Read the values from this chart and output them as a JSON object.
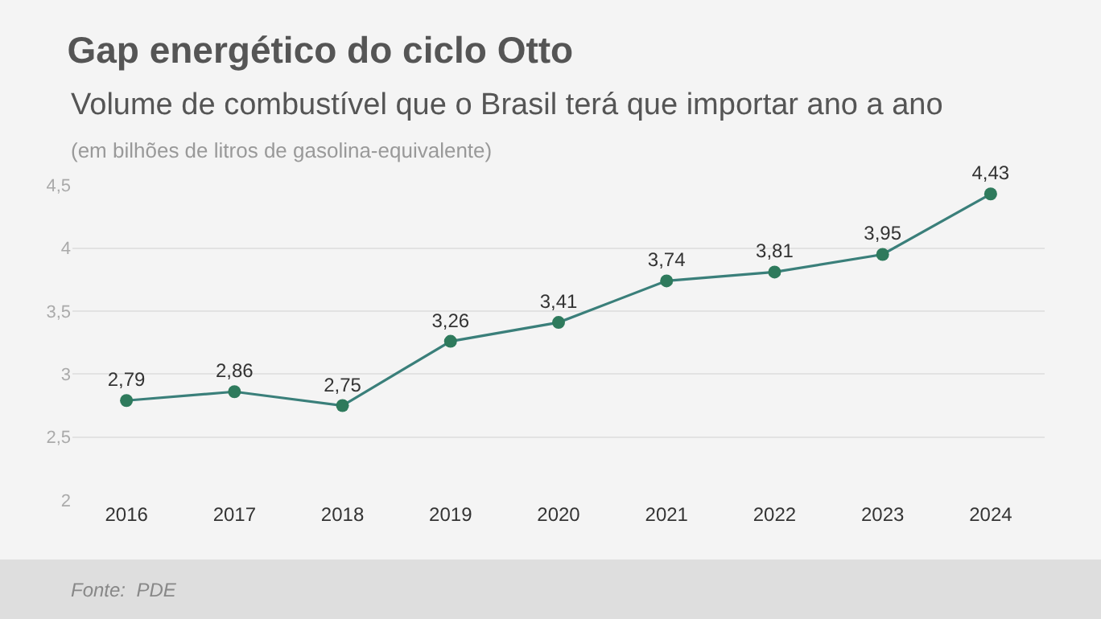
{
  "chart_data": {
    "type": "line",
    "title": "Gap energético do ciclo Otto",
    "subtitle": "Volume de combustível que o Brasil terá que importar ano a ano",
    "annotations": [
      "(em bilhões de litros de gasolina-equivalente)",
      "Fonte:  PDE"
    ],
    "categories": [
      "2016",
      "2017",
      "2018",
      "2019",
      "2020",
      "2021",
      "2022",
      "2023",
      "2024"
    ],
    "series": [
      {
        "color": "#3a7f7a",
        "values": [
          2.79,
          2.86,
          2.75,
          3.26,
          3.41,
          3.74,
          3.81,
          3.95,
          4.43
        ],
        "value_labels": [
          "2,79",
          "2,86",
          "2,75",
          "3,26",
          "3,41",
          "3,74",
          "3,81",
          "3,95",
          "4,43"
        ]
      }
    ],
    "ylim": [
      2,
      4.5
    ],
    "yticks": [
      2,
      {
        "value": 2.5,
        "label": "2,5"
      },
      3,
      {
        "value": 3.5,
        "label": "3,5"
      },
      4,
      {
        "value": 4.5,
        "label": "4,5"
      }
    ],
    "grid": "y",
    "marker": "circle",
    "line_style": "solid",
    "legend": false
  }
}
